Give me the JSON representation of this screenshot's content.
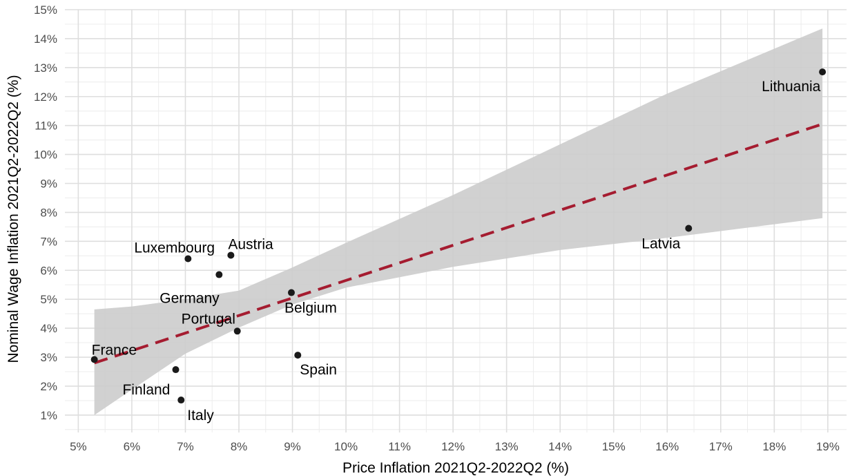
{
  "chart_data": {
    "type": "scatter",
    "xlabel": "Price Inflation 2021Q2-2022Q2 (%)",
    "ylabel": "Nominal Wage Inflation 2021Q2-2022Q2 (%)",
    "xlim": [
      4.75,
      19.35
    ],
    "ylim": [
      0.4,
      15
    ],
    "x_ticks": [
      "5%",
      "6%",
      "7%",
      "8%",
      "9%",
      "10%",
      "11%",
      "12%",
      "13%",
      "14%",
      "15%",
      "16%",
      "17%",
      "18%",
      "19%"
    ],
    "y_ticks": [
      "1%",
      "2%",
      "3%",
      "4%",
      "5%",
      "6%",
      "7%",
      "8%",
      "9%",
      "10%",
      "11%",
      "12%",
      "13%",
      "14%",
      "15%"
    ],
    "grid": true,
    "colors": {
      "points": "#1a1a1a",
      "trend": "#a51c30",
      "band": "#cccccc",
      "grid_major": "#dedede",
      "grid_minor": "#ececec"
    },
    "points": [
      {
        "label": "France",
        "x": 5.3,
        "y": 2.92
      },
      {
        "label": "Finland",
        "x": 6.82,
        "y": 2.57
      },
      {
        "label": "Italy",
        "x": 6.92,
        "y": 1.52
      },
      {
        "label": "Luxembourg",
        "x": 7.05,
        "y": 6.4
      },
      {
        "label": "Germany",
        "x": 7.63,
        "y": 5.85
      },
      {
        "label": "Austria",
        "x": 7.85,
        "y": 6.52
      },
      {
        "label": "Portugal",
        "x": 7.97,
        "y": 3.9
      },
      {
        "label": "Belgium",
        "x": 8.98,
        "y": 5.23
      },
      {
        "label": "Spain",
        "x": 9.1,
        "y": 3.07
      },
      {
        "label": "Latvia",
        "x": 16.4,
        "y": 7.45
      },
      {
        "label": "Lithuania",
        "x": 18.9,
        "y": 12.85
      }
    ],
    "trend_line": {
      "x": [
        5.3,
        18.9
      ],
      "y": [
        2.8,
        11.05
      ]
    },
    "confidence_band": {
      "x": [
        5.3,
        6.0,
        7.0,
        8.0,
        9.0,
        10.0,
        12.0,
        14.0,
        16.0,
        18.9
      ],
      "lower": [
        1.0,
        1.88,
        3.12,
        4.02,
        4.82,
        5.4,
        6.12,
        6.7,
        7.12,
        7.8
      ],
      "upper": [
        4.65,
        4.75,
        5.0,
        5.3,
        6.1,
        6.95,
        8.6,
        10.35,
        12.1,
        14.35
      ]
    }
  }
}
